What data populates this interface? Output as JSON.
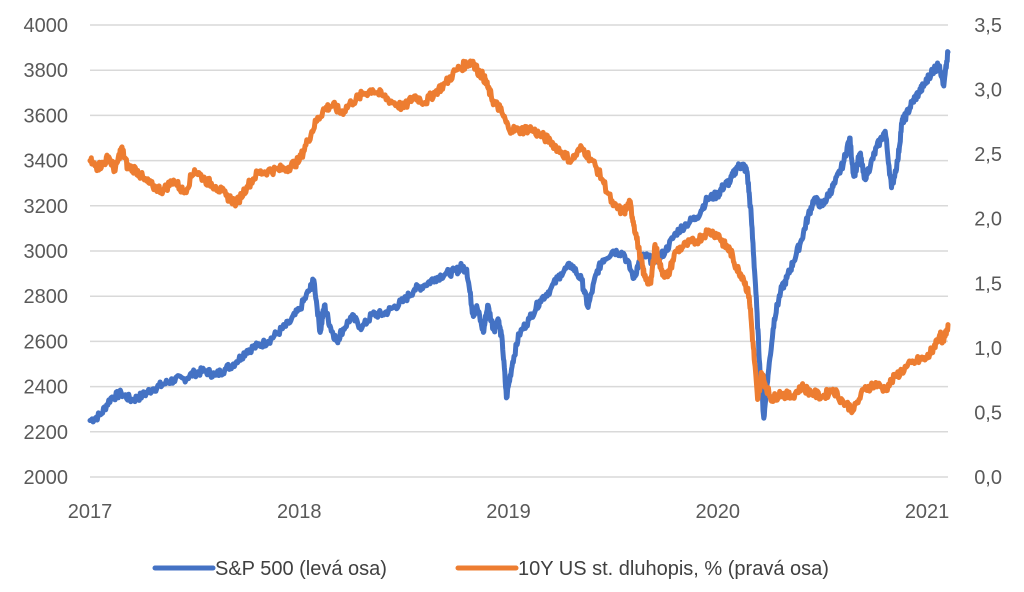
{
  "chart_data": {
    "type": "line",
    "title": "",
    "xlabel": "",
    "ylabel": "",
    "x_ticks": [
      "2017",
      "2018",
      "2019",
      "2020",
      "2021"
    ],
    "y_left_ticks": [
      "2000",
      "2200",
      "2400",
      "2600",
      "2800",
      "3000",
      "3200",
      "3400",
      "3600",
      "3800",
      "4000"
    ],
    "y_right_ticks": [
      "0,0",
      "0,5",
      "1,0",
      "1,5",
      "2,0",
      "2,5",
      "3,0",
      "3,5"
    ],
    "ylim_left": [
      2000,
      4000
    ],
    "ylim_right": [
      0,
      3.5
    ],
    "xlim": [
      2017.0,
      2021.1
    ],
    "grid": "horizontal",
    "legend_position": "bottom",
    "series": [
      {
        "name": "S&P 500 (levá osa)",
        "axis": "left",
        "color": "#4472c4",
        "x": [
          2017.0,
          2017.05,
          2017.1,
          2017.15,
          2017.2,
          2017.25,
          2017.3,
          2017.35,
          2017.4,
          2017.45,
          2017.5,
          2017.55,
          2017.6,
          2017.65,
          2017.7,
          2017.75,
          2017.8,
          2017.85,
          2017.9,
          2017.95,
          2018.0,
          2018.05,
          2018.07,
          2018.1,
          2018.12,
          2018.15,
          2018.18,
          2018.2,
          2018.25,
          2018.3,
          2018.35,
          2018.4,
          2018.45,
          2018.5,
          2018.55,
          2018.6,
          2018.65,
          2018.7,
          2018.75,
          2018.77,
          2018.8,
          2018.83,
          2018.85,
          2018.88,
          2018.9,
          2018.93,
          2018.95,
          2018.97,
          2018.99,
          2019.02,
          2019.05,
          2019.1,
          2019.15,
          2019.2,
          2019.25,
          2019.3,
          2019.35,
          2019.38,
          2019.42,
          2019.45,
          2019.5,
          2019.55,
          2019.6,
          2019.62,
          2019.65,
          2019.7,
          2019.75,
          2019.8,
          2019.85,
          2019.9,
          2019.95,
          2020.0,
          2020.03,
          2020.06,
          2020.09,
          2020.12,
          2020.14,
          2020.16,
          2020.18,
          2020.2,
          2020.22,
          2020.24,
          2020.27,
          2020.3,
          2020.33,
          2020.36,
          2020.4,
          2020.43,
          2020.46,
          2020.5,
          2020.53,
          2020.56,
          2020.6,
          2020.63,
          2020.65,
          2020.68,
          2020.7,
          2020.73,
          2020.76,
          2020.8,
          2020.83,
          2020.86,
          2020.88,
          2020.9,
          2020.93,
          2020.96,
          2020.99,
          2021.02,
          2021.04,
          2021.06,
          2021.08,
          2021.1
        ],
        "values": [
          2250,
          2275,
          2350,
          2370,
          2340,
          2360,
          2390,
          2410,
          2430,
          2435,
          2460,
          2470,
          2450,
          2480,
          2510,
          2560,
          2580,
          2600,
          2640,
          2680,
          2740,
          2830,
          2870,
          2640,
          2760,
          2660,
          2600,
          2640,
          2710,
          2660,
          2720,
          2720,
          2750,
          2780,
          2830,
          2850,
          2880,
          2900,
          2910,
          2930,
          2920,
          2720,
          2750,
          2640,
          2760,
          2650,
          2700,
          2600,
          2350,
          2510,
          2630,
          2700,
          2780,
          2830,
          2900,
          2940,
          2870,
          2750,
          2900,
          2960,
          3000,
          2990,
          2880,
          2940,
          2980,
          2950,
          3000,
          3080,
          3120,
          3150,
          3230,
          3250,
          3290,
          3310,
          3370,
          3380,
          3350,
          3150,
          2850,
          2500,
          2260,
          2450,
          2700,
          2820,
          2880,
          2950,
          3050,
          3150,
          3230,
          3200,
          3250,
          3300,
          3390,
          3500,
          3330,
          3430,
          3320,
          3380,
          3460,
          3530,
          3280,
          3400,
          3570,
          3600,
          3660,
          3700,
          3740,
          3790,
          3810,
          3820,
          3730,
          3880
        ]
      },
      {
        "name": "10Y US st. dluhopis, % (pravá osa)",
        "axis": "right",
        "color": "#ed7d31",
        "x": [
          2017.0,
          2017.03,
          2017.06,
          2017.09,
          2017.12,
          2017.15,
          2017.18,
          2017.22,
          2017.26,
          2017.3,
          2017.35,
          2017.4,
          2017.45,
          2017.5,
          2017.55,
          2017.6,
          2017.65,
          2017.7,
          2017.75,
          2017.8,
          2017.85,
          2017.9,
          2017.95,
          2018.0,
          2018.04,
          2018.08,
          2018.12,
          2018.16,
          2018.2,
          2018.25,
          2018.3,
          2018.35,
          2018.4,
          2018.45,
          2018.5,
          2018.55,
          2018.6,
          2018.65,
          2018.7,
          2018.75,
          2018.8,
          2018.83,
          2018.85,
          2018.88,
          2018.9,
          2018.93,
          2018.96,
          2019.0,
          2019.05,
          2019.1,
          2019.15,
          2019.2,
          2019.25,
          2019.3,
          2019.35,
          2019.4,
          2019.45,
          2019.5,
          2019.55,
          2019.58,
          2019.6,
          2019.63,
          2019.65,
          2019.68,
          2019.7,
          2019.73,
          2019.76,
          2019.8,
          2019.85,
          2019.9,
          2019.95,
          2020.0,
          2020.03,
          2020.06,
          2020.09,
          2020.12,
          2020.15,
          2020.17,
          2020.19,
          2020.21,
          2020.23,
          2020.26,
          2020.3,
          2020.35,
          2020.4,
          2020.45,
          2020.5,
          2020.55,
          2020.6,
          2020.65,
          2020.7,
          2020.75,
          2020.8,
          2020.85,
          2020.9,
          2020.95,
          2021.0,
          2021.03,
          2021.06,
          2021.08,
          2021.1
        ],
        "values": [
          2.45,
          2.4,
          2.42,
          2.48,
          2.37,
          2.55,
          2.4,
          2.38,
          2.3,
          2.25,
          2.22,
          2.3,
          2.2,
          2.38,
          2.3,
          2.25,
          2.18,
          2.12,
          2.25,
          2.35,
          2.37,
          2.38,
          2.4,
          2.45,
          2.6,
          2.75,
          2.85,
          2.88,
          2.82,
          2.9,
          2.96,
          3.0,
          2.95,
          2.9,
          2.86,
          2.95,
          2.9,
          2.98,
          3.05,
          3.15,
          3.2,
          3.22,
          3.15,
          3.1,
          3.02,
          2.9,
          2.85,
          2.7,
          2.68,
          2.7,
          2.65,
          2.6,
          2.52,
          2.45,
          2.55,
          2.45,
          2.3,
          2.1,
          2.05,
          2.12,
          1.95,
          1.7,
          1.55,
          1.5,
          1.8,
          1.6,
          1.55,
          1.75,
          1.8,
          1.83,
          1.9,
          1.88,
          1.8,
          1.75,
          1.62,
          1.55,
          1.4,
          1.0,
          0.6,
          0.8,
          0.7,
          0.6,
          0.65,
          0.62,
          0.7,
          0.65,
          0.62,
          0.68,
          0.58,
          0.52,
          0.68,
          0.72,
          0.68,
          0.78,
          0.85,
          0.9,
          0.92,
          1.0,
          1.1,
          1.05,
          1.18
        ]
      }
    ]
  }
}
